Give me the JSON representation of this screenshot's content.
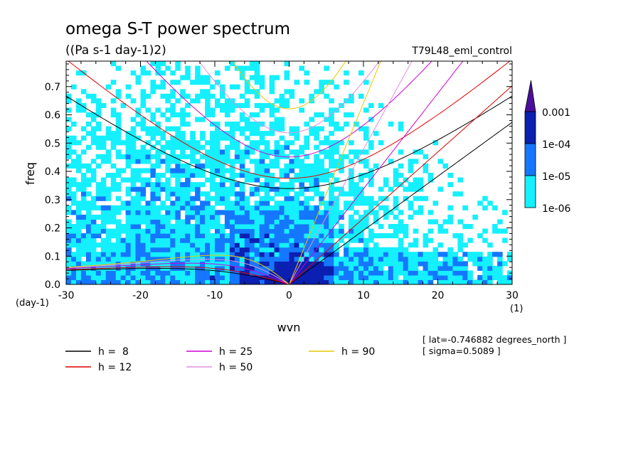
{
  "chart_data": {
    "type": "heatmap",
    "title": "omega S-T power spectrum",
    "subtitle": "((Pa s-1 day-1)2)",
    "run_label": "T79L48_eml_control",
    "xlabel": "wvn",
    "ylabel": "freq",
    "x_unit": "(1)",
    "y_unit": "(day-1)",
    "xlim": [
      -30,
      30
    ],
    "ylim": [
      0,
      0.79
    ],
    "xticks": [
      -30,
      -20,
      -10,
      0,
      10,
      20,
      30
    ],
    "yticks": [
      0.0,
      0.1,
      0.2,
      0.3,
      0.4,
      0.5,
      0.6,
      0.7
    ],
    "xtick_labels": [
      "-30",
      "-20",
      "-10",
      "0",
      "10",
      "20",
      "30"
    ],
    "ytick_labels": [
      "0.0",
      "0.1",
      "0.2",
      "0.3",
      "0.4",
      "0.5",
      "0.6",
      "0.7"
    ],
    "colorbar": {
      "labels": [
        "0.001",
        "1e-04",
        "1e-05",
        "1e-06"
      ],
      "colors": [
        "#4b0f9c",
        "#0b1fb0",
        "#1577ff",
        "#15f0ff"
      ]
    },
    "annotations": [
      "[ lat=-0.746882 degrees_north ]",
      "[ sigma=0.5089 ]"
    ],
    "legend": [
      {
        "label": "h =  8",
        "color": "#000000"
      },
      {
        "label": "h = 12",
        "color": "#e00000"
      },
      {
        "label": "h = 25",
        "color": "#d000d0"
      },
      {
        "label": "h = 50",
        "color": "#e090e0"
      },
      {
        "label": "h = 90",
        "color": "#e8c800"
      }
    ],
    "dispersion_depths": [
      8,
      12,
      25,
      50,
      90
    ]
  }
}
